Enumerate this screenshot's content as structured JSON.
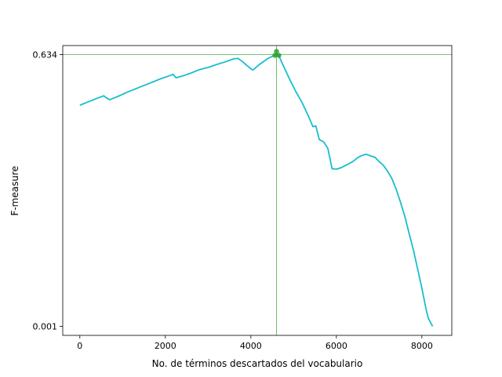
{
  "chart_data": {
    "type": "line",
    "title": "",
    "xlabel": "No. de términos descartados del vocabulario",
    "ylabel": "F-measure",
    "xlim": [
      -400,
      8700
    ],
    "ylim": [
      -0.02,
      0.655
    ],
    "xticks": [
      0,
      2000,
      4000,
      6000,
      8000
    ],
    "xtick_labels": [
      "0",
      "2000",
      "4000",
      "6000",
      "8000"
    ],
    "yticks": [
      0.001,
      0.634
    ],
    "ytick_labels": [
      "0.001",
      "0.634"
    ],
    "grid": false,
    "legend": "none",
    "line_color": "#17becf",
    "marker_color": "#2ca02c",
    "highlight": {
      "x": 4600,
      "y": 0.634
    },
    "series": [
      {
        "values": [
          [
            0,
            0.516
          ],
          [
            200,
            0.524
          ],
          [
            400,
            0.532
          ],
          [
            560,
            0.538
          ],
          [
            620,
            0.533
          ],
          [
            700,
            0.529
          ],
          [
            900,
            0.537
          ],
          [
            1100,
            0.546
          ],
          [
            1300,
            0.554
          ],
          [
            1500,
            0.562
          ],
          [
            1700,
            0.57
          ],
          [
            1900,
            0.578
          ],
          [
            2100,
            0.585
          ],
          [
            2180,
            0.588
          ],
          [
            2250,
            0.58
          ],
          [
            2400,
            0.584
          ],
          [
            2600,
            0.591
          ],
          [
            2800,
            0.599
          ],
          [
            3000,
            0.604
          ],
          [
            3200,
            0.611
          ],
          [
            3400,
            0.617
          ],
          [
            3600,
            0.624
          ],
          [
            3700,
            0.625
          ],
          [
            3800,
            0.618
          ],
          [
            3900,
            0.609
          ],
          [
            4000,
            0.601
          ],
          [
            4050,
            0.598
          ],
          [
            4200,
            0.611
          ],
          [
            4400,
            0.625
          ],
          [
            4550,
            0.632
          ],
          [
            4600,
            0.634
          ],
          [
            4650,
            0.632
          ],
          [
            4750,
            0.61
          ],
          [
            4900,
            0.578
          ],
          [
            5050,
            0.548
          ],
          [
            5200,
            0.522
          ],
          [
            5350,
            0.49
          ],
          [
            5450,
            0.466
          ],
          [
            5520,
            0.468
          ],
          [
            5600,
            0.436
          ],
          [
            5700,
            0.431
          ],
          [
            5800,
            0.416
          ],
          [
            5900,
            0.368
          ],
          [
            6000,
            0.367
          ],
          [
            6100,
            0.37
          ],
          [
            6200,
            0.375
          ],
          [
            6300,
            0.38
          ],
          [
            6400,
            0.386
          ],
          [
            6500,
            0.394
          ],
          [
            6600,
            0.399
          ],
          [
            6700,
            0.402
          ],
          [
            6800,
            0.398
          ],
          [
            6900,
            0.395
          ],
          [
            7000,
            0.385
          ],
          [
            7100,
            0.376
          ],
          [
            7200,
            0.362
          ],
          [
            7300,
            0.345
          ],
          [
            7400,
            0.32
          ],
          [
            7500,
            0.29
          ],
          [
            7600,
            0.258
          ],
          [
            7700,
            0.218
          ],
          [
            7800,
            0.18
          ],
          [
            7900,
            0.135
          ],
          [
            8000,
            0.09
          ],
          [
            8100,
            0.04
          ],
          [
            8150,
            0.02
          ],
          [
            8250,
            0.001
          ]
        ]
      }
    ]
  }
}
